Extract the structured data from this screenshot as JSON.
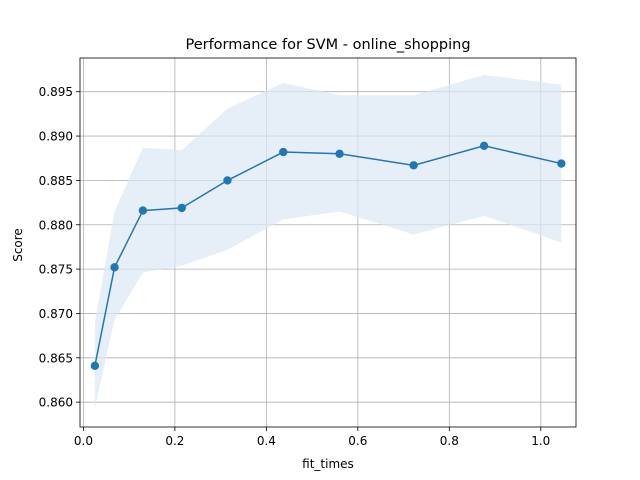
{
  "chart_data": {
    "type": "line",
    "title": "Performance for SVM - online_shopping",
    "xlabel": "fit_times",
    "ylabel": "Score",
    "xlim": [
      -0.0075,
      1.077
    ],
    "ylim": [
      0.8572,
      0.8988
    ],
    "grid": true,
    "xticks": [
      0.0,
      0.2,
      0.4,
      0.6,
      0.8,
      1.0
    ],
    "xtick_labels": [
      "0.0",
      "0.2",
      "0.4",
      "0.6",
      "0.8",
      "1.0"
    ],
    "yticks": [
      0.86,
      0.865,
      0.87,
      0.875,
      0.88,
      0.885,
      0.89,
      0.895
    ],
    "ytick_labels": [
      "0.860",
      "0.865",
      "0.870",
      "0.875",
      "0.880",
      "0.885",
      "0.890",
      "0.895"
    ],
    "colors": {
      "line": "#1f77b4",
      "band": "#dce8f4",
      "grid": "#b0b0b0"
    },
    "series": [
      {
        "x": [
          0.025,
          0.068,
          0.13,
          0.215,
          0.315,
          0.437,
          0.56,
          0.722,
          0.876,
          1.045
        ],
        "values": [
          0.8641,
          0.8752,
          0.8816,
          0.8819,
          0.885,
          0.8882,
          0.888,
          0.8867,
          0.8889,
          0.8869
        ],
        "upper": [
          0.869,
          0.8815,
          0.8887,
          0.8884,
          0.8931,
          0.896,
          0.8946,
          0.8946,
          0.8969,
          0.8958
        ],
        "lower": [
          0.8593,
          0.8693,
          0.8746,
          0.8754,
          0.8772,
          0.8806,
          0.8815,
          0.8789,
          0.881,
          0.878
        ]
      }
    ]
  }
}
